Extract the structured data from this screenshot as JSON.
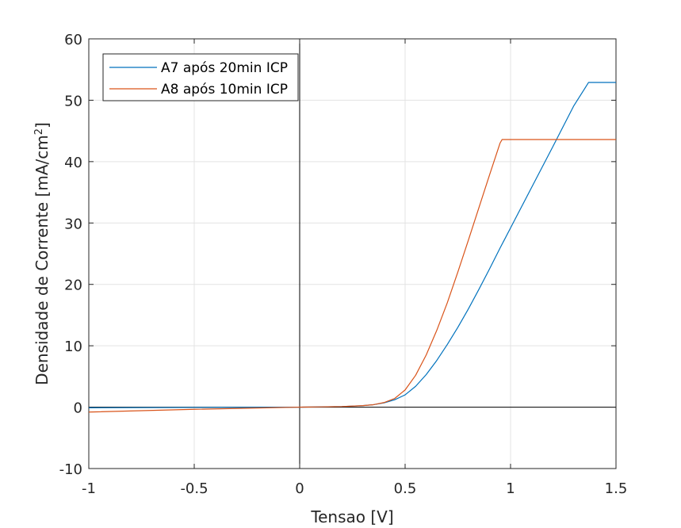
{
  "chart_data": {
    "type": "line",
    "title": "",
    "xlabel": "Tensao [V]",
    "ylabel_main": "Densidade de Corrente [mA/cm",
    "ylabel_sup": "2",
    "ylabel_tail": "]",
    "xlim": [
      -1,
      1.5
    ],
    "ylim": [
      -10,
      60
    ],
    "xticks": [
      -1,
      -0.5,
      0,
      0.5,
      1,
      1.5
    ],
    "xtick_labels": [
      "-1",
      "-0.5",
      "0",
      "0.5",
      "1",
      "1.5"
    ],
    "yticks": [
      -10,
      0,
      10,
      20,
      30,
      40,
      50,
      60
    ],
    "ytick_labels": [
      "-10",
      "0",
      "10",
      "20",
      "30",
      "40",
      "50",
      "60"
    ],
    "grid": true,
    "legend_position": "top-left",
    "series": [
      {
        "name": "A7 após 20min ICP",
        "color": "#0072BD",
        "x": [
          -1,
          -0.5,
          0,
          0.1,
          0.2,
          0.3,
          0.35,
          0.4,
          0.45,
          0.5,
          0.55,
          0.6,
          0.65,
          0.7,
          0.75,
          0.8,
          0.85,
          0.9,
          0.95,
          1.0,
          1.1,
          1.2,
          1.3,
          1.35,
          1.37,
          1.4,
          1.5
        ],
        "values": [
          -0.1,
          -0.05,
          0,
          0.05,
          0.1,
          0.25,
          0.4,
          0.7,
          1.2,
          2.0,
          3.4,
          5.3,
          7.6,
          10.2,
          13.0,
          16.0,
          19.2,
          22.5,
          25.9,
          29.2,
          35.8,
          42.4,
          49.1,
          51.8,
          52.9,
          52.9,
          52.9
        ]
      },
      {
        "name": "A8 após 10min ICP",
        "color": "#D95319",
        "x": [
          -1,
          -0.5,
          0,
          0.1,
          0.2,
          0.3,
          0.35,
          0.4,
          0.45,
          0.5,
          0.55,
          0.6,
          0.65,
          0.7,
          0.75,
          0.8,
          0.85,
          0.9,
          0.95,
          0.96,
          1.0,
          1.5
        ],
        "values": [
          -0.8,
          -0.35,
          0,
          0.05,
          0.1,
          0.25,
          0.4,
          0.75,
          1.4,
          2.8,
          5.2,
          8.5,
          12.5,
          17.0,
          22.0,
          27.2,
          32.5,
          37.8,
          43.0,
          43.6,
          43.6,
          43.6
        ]
      }
    ]
  }
}
